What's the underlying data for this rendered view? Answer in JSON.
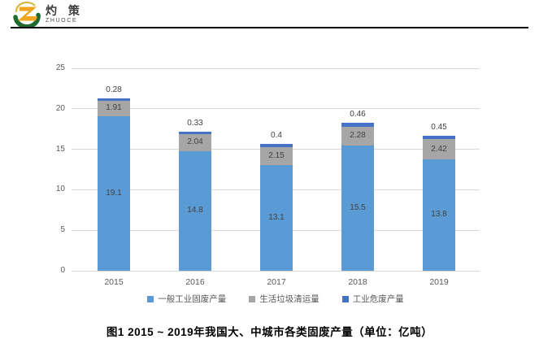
{
  "brand": {
    "name_cn": "灼 策",
    "name_en": "ZHUOCE"
  },
  "caption": "图1  2015 ~ 2019年我国大、中城市各类固废产量（单位：亿吨）",
  "chart_data": {
    "type": "bar",
    "stacked": true,
    "title": "",
    "xlabel": "",
    "ylabel": "",
    "categories": [
      "2015",
      "2016",
      "2017",
      "2018",
      "2019"
    ],
    "series": [
      {
        "name": "一般工业固废产量",
        "color": "#5B9BD5",
        "values": [
          19.1,
          14.8,
          13.1,
          15.5,
          13.8
        ]
      },
      {
        "name": "生活垃圾清运量",
        "color": "#A6A6A6",
        "values": [
          1.91,
          2.04,
          2.15,
          2.28,
          2.42
        ]
      },
      {
        "name": "工业危废产量",
        "color": "#4472C4",
        "values": [
          0.28,
          0.33,
          0.4,
          0.46,
          0.45
        ]
      }
    ],
    "ylim": [
      0,
      25
    ],
    "yticks": [
      0,
      5,
      10,
      15,
      20,
      25
    ],
    "grid": true,
    "legend_position": "bottom",
    "gridline_color": "#D9D9D9",
    "tick_label_color": "#595959",
    "data_label_color": "#404040"
  }
}
